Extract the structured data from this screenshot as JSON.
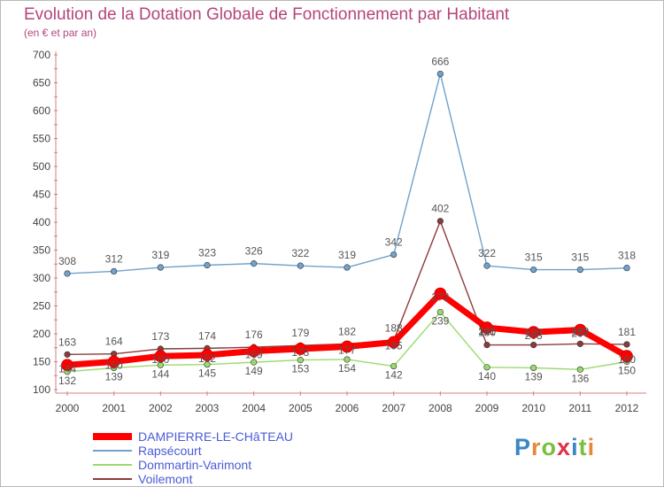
{
  "header": {
    "title": "Evolution de la Dotation Globale de Fonctionnement par Habitant",
    "subtitle": "(en € et par an)"
  },
  "logo": {
    "text": "Proxiti",
    "colors": [
      "#3b86c6",
      "#e8873a",
      "#7bbf3e",
      "#e0304a",
      "#3b86c6",
      "#7bbf3e",
      "#e8873a"
    ]
  },
  "chart_data": {
    "type": "line",
    "x": [
      "2000",
      "2001",
      "2002",
      "2003",
      "2004",
      "2005",
      "2006",
      "2007",
      "2008",
      "2009",
      "2010",
      "2011",
      "2012"
    ],
    "ylim": [
      100,
      700
    ],
    "yticks": [
      100,
      150,
      200,
      250,
      300,
      350,
      400,
      450,
      500,
      550,
      600,
      650,
      700
    ],
    "grid": false,
    "legend_placement": "bottom-left",
    "series": [
      {
        "name": "DAMPIERRE-LE-CHâTEAU",
        "color": "#ff0000",
        "values": [
          144,
          150,
          160,
          162,
          169,
          173,
          177,
          185,
          272,
          211,
          203,
          207,
          160
        ],
        "labels": [
          "144",
          "150",
          "160",
          "162",
          "169",
          "173",
          "177",
          "185",
          "272",
          "211",
          "203",
          "207",
          "160"
        ]
      },
      {
        "name": "Rapsécourt",
        "color": "#6fa2cc",
        "values": [
          308,
          312,
          319,
          323,
          326,
          322,
          319,
          342,
          666,
          322,
          315,
          315,
          318
        ],
        "labels": [
          "308",
          "312",
          "319",
          "323",
          "326",
          "322",
          "319",
          "342",
          "666",
          "322",
          "315",
          "315",
          "318"
        ]
      },
      {
        "name": "Dommartin-Varimont",
        "color": "#9ada6c",
        "values": [
          132,
          139,
          144,
          145,
          149,
          153,
          154,
          142,
          239,
          140,
          139,
          136,
          150
        ],
        "labels": [
          "132",
          "139",
          "144",
          "145",
          "149",
          "153",
          "154",
          "142",
          "239",
          "140",
          "139",
          "136",
          "150"
        ]
      },
      {
        "name": "Voilemont",
        "color": "#8b3b3b",
        "values": [
          163,
          164,
          173,
          174,
          176,
          179,
          182,
          188,
          402,
          180,
          180,
          182,
          181
        ],
        "labels": [
          "163",
          "164",
          "173",
          "174",
          "176",
          "179",
          "182",
          "188",
          "402",
          "180",
          "180",
          "182",
          "181"
        ]
      }
    ]
  }
}
